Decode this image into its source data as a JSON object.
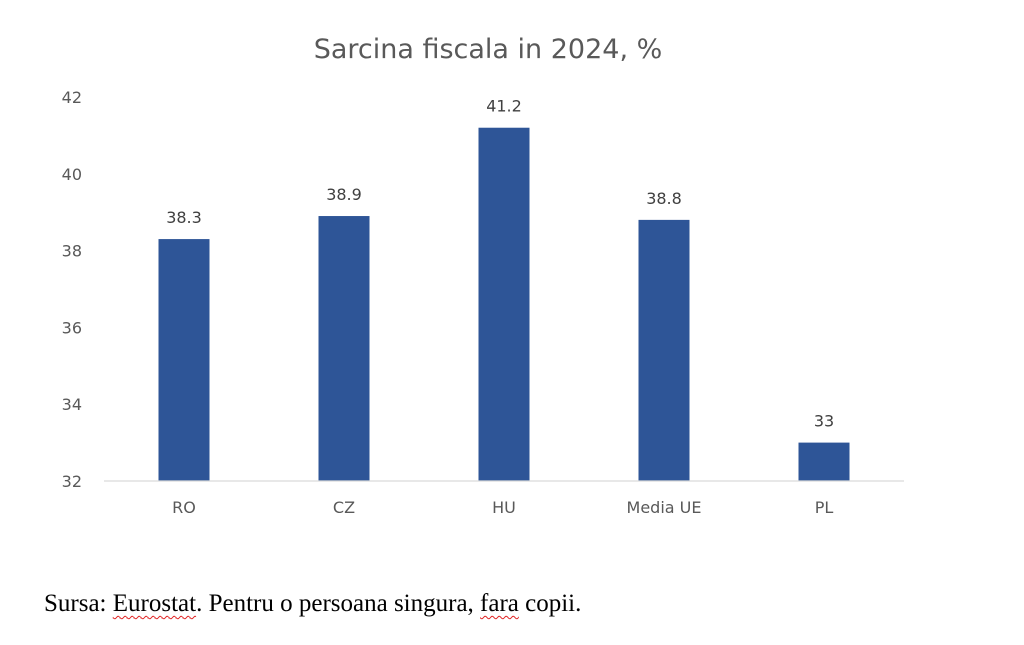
{
  "chart_data": {
    "type": "bar",
    "title": "Sarcina fiscala in 2024, %",
    "categories": [
      "RO",
      "CZ",
      "HU",
      "Media UE",
      "PL"
    ],
    "values": [
      38.3,
      38.9,
      41.2,
      38.8,
      33
    ],
    "value_labels": [
      "38.3",
      "38.9",
      "41.2",
      "38.8",
      "33"
    ],
    "yticks": [
      "32",
      "34",
      "36",
      "38",
      "40",
      "42"
    ],
    "ylim": [
      32,
      42
    ],
    "xlabel": "",
    "ylabel": "",
    "grid": false,
    "legend": "none",
    "bar_color": "#2e5597"
  },
  "footnote": {
    "prefix": "Sursa: ",
    "source": "Eurostat",
    "middle": ". Pentru o persoana singura, ",
    "fara": "fara",
    "suffix": " copii."
  }
}
